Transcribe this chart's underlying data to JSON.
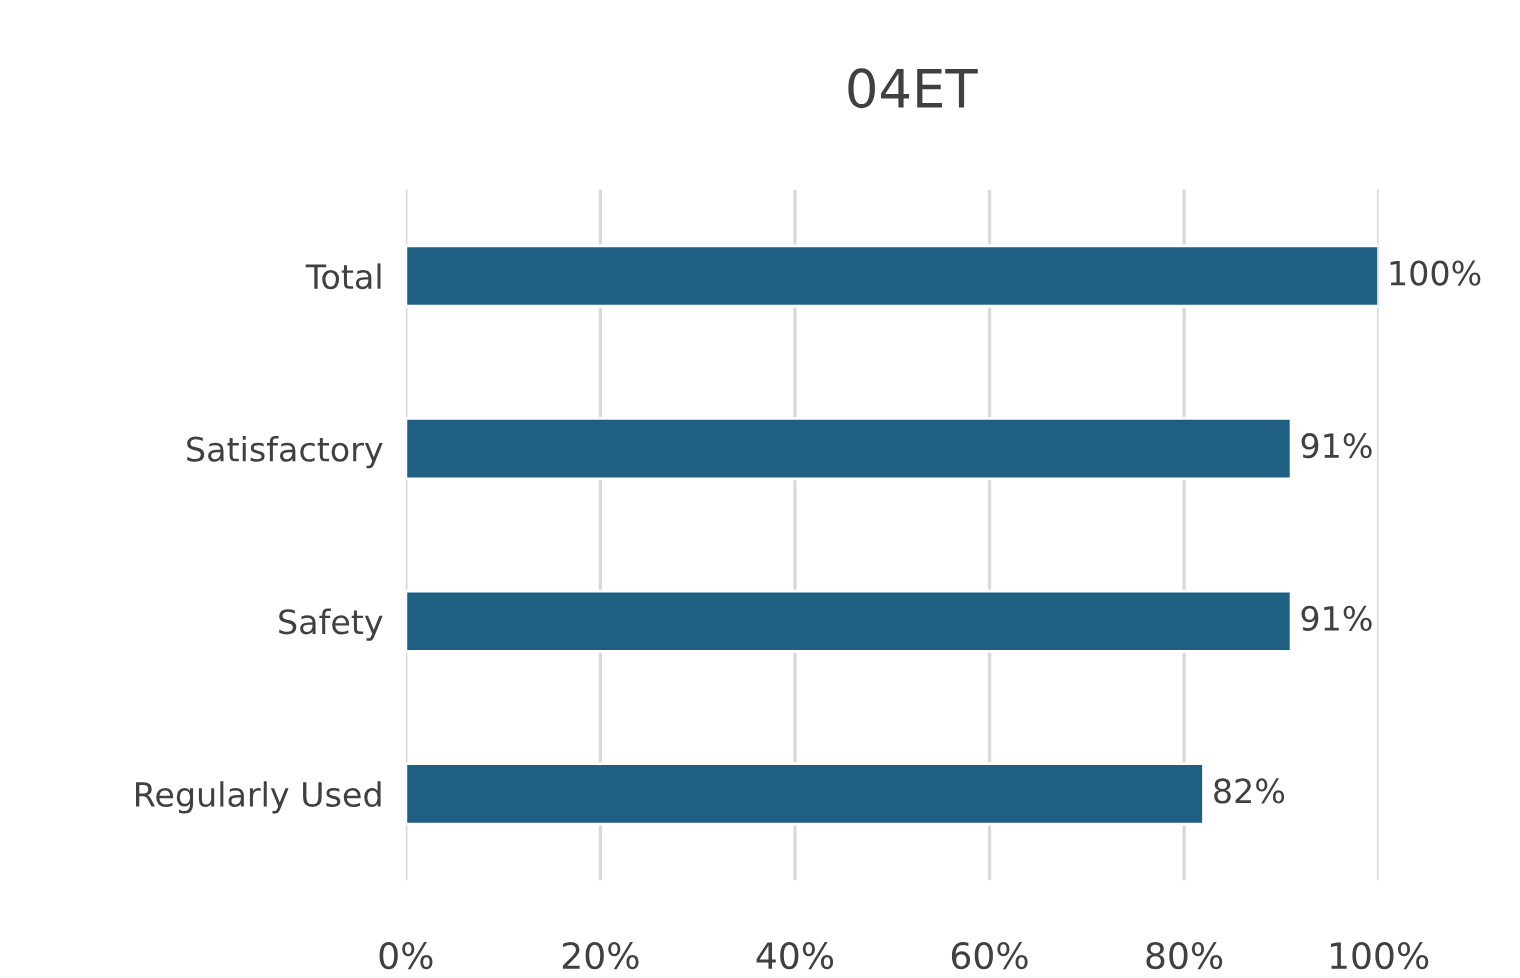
{
  "chart_data": {
    "type": "bar",
    "orientation": "horizontal",
    "title": "04ET",
    "categories": [
      "Total",
      "Satisfactory",
      "Safety",
      "Regularly Used"
    ],
    "values": [
      100,
      91,
      91,
      82
    ],
    "value_labels": [
      "100%",
      "91%",
      "91%",
      "82%"
    ],
    "color": "#1f6082",
    "xlim": [
      0,
      100
    ],
    "xticks": [
      {
        "value": 0,
        "label": "0%"
      },
      {
        "value": 20,
        "label": "20%"
      },
      {
        "value": 40,
        "label": "40%"
      },
      {
        "value": 60,
        "label": "60%"
      },
      {
        "value": 80,
        "label": "80%"
      },
      {
        "value": 100,
        "label": "100%"
      }
    ],
    "grid": "x",
    "legend": false
  }
}
